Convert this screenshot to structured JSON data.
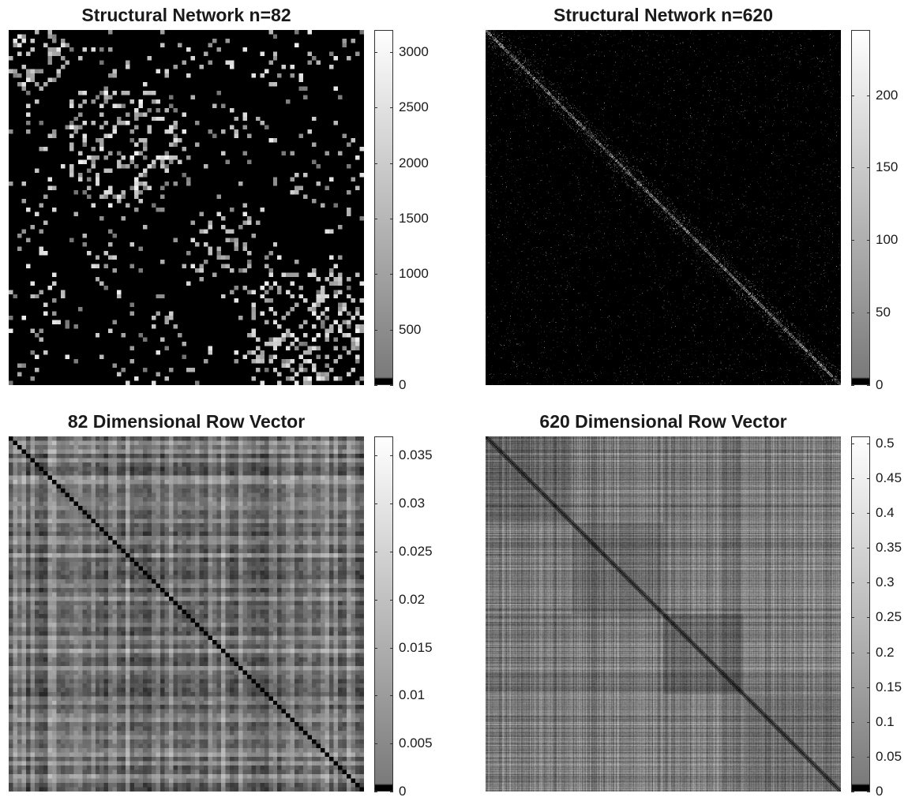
{
  "chart_data": [
    {
      "type": "heatmap",
      "title": "Structural Network n=82",
      "matrix_size": 82,
      "colormap": "gray",
      "structure": "sparse symmetric connectivity matrix with block clusters",
      "colorbar": {
        "min": 0,
        "max": 3200,
        "ticks": [
          0,
          500,
          1000,
          1500,
          2000,
          2500,
          3000
        ],
        "tick_labels": [
          "0",
          "500",
          "1000",
          "1500",
          "2000",
          "2500",
          "3000"
        ]
      }
    },
    {
      "type": "heatmap",
      "title": "Structural Network n=620",
      "matrix_size": 620,
      "colormap": "gray",
      "structure": "sparse symmetric connectivity matrix, strong diagonal band",
      "colorbar": {
        "min": 0,
        "max": 245,
        "ticks": [
          0,
          50,
          100,
          150,
          200
        ],
        "tick_labels": [
          "0",
          "50",
          "100",
          "150",
          "200"
        ]
      }
    },
    {
      "type": "heatmap",
      "title": "82 Dimensional Row Vector",
      "matrix_size": 82,
      "colormap": "gray",
      "structure": "dense symmetric distance matrix, zero diagonal",
      "colorbar": {
        "min": 0,
        "max": 0.037,
        "ticks": [
          0,
          0.005,
          0.01,
          0.015,
          0.02,
          0.025,
          0.03,
          0.035
        ],
        "tick_labels": [
          "0",
          "0.005",
          "0.01",
          "0.015",
          "0.02",
          "0.025",
          "0.03",
          "0.035"
        ]
      }
    },
    {
      "type": "heatmap",
      "title": "620 Dimensional Row Vector",
      "matrix_size": 620,
      "colormap": "gray",
      "structure": "dense symmetric distance matrix, zero diagonal",
      "colorbar": {
        "min": 0,
        "max": 0.51,
        "ticks": [
          0,
          0.05,
          0.1,
          0.15,
          0.2,
          0.25,
          0.3,
          0.35,
          0.4,
          0.45,
          0.5
        ],
        "tick_labels": [
          "0",
          "0.05",
          "0.1",
          "0.15",
          "0.2",
          "0.25",
          "0.3",
          "0.35",
          "0.4",
          "0.45",
          "0.5"
        ]
      }
    }
  ]
}
